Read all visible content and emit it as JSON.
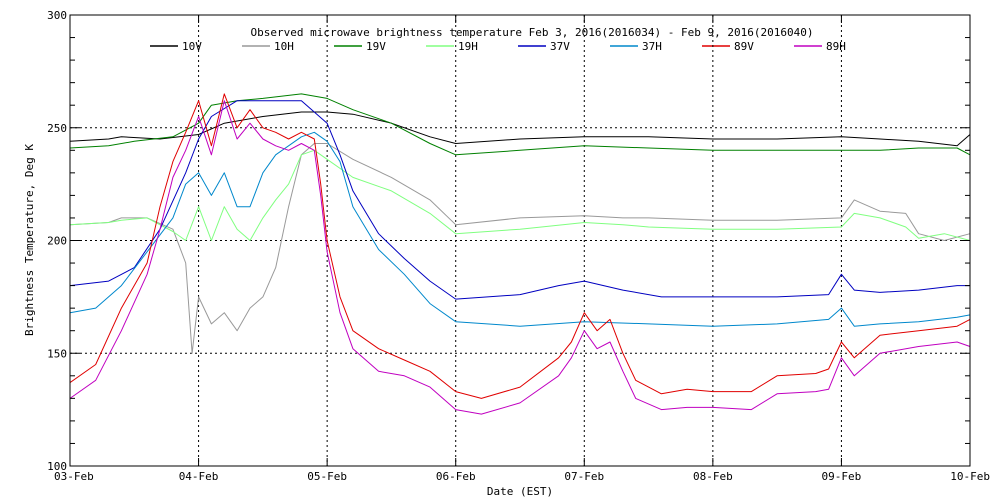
{
  "chart_data": {
    "type": "line",
    "title": "Observed microwave brightness temperature Feb  3, 2016(2016034) - Feb  9, 2016(2016040)",
    "xlabel": "Date (EST)",
    "ylabel": "Brightness Temperature, Deg K",
    "xlim": [
      0,
      7
    ],
    "ylim": [
      100,
      300
    ],
    "x_ticks": [
      {
        "x": 0,
        "label": "03-Feb"
      },
      {
        "x": 1,
        "label": "04-Feb"
      },
      {
        "x": 2,
        "label": "05-Feb"
      },
      {
        "x": 3,
        "label": "06-Feb"
      },
      {
        "x": 4,
        "label": "07-Feb"
      },
      {
        "x": 5,
        "label": "08-Feb"
      },
      {
        "x": 6,
        "label": "09-Feb"
      },
      {
        "x": 7,
        "label": "10-Feb"
      }
    ],
    "y_ticks": [
      {
        "y": 100,
        "label": "100"
      },
      {
        "y": 150,
        "label": "150"
      },
      {
        "y": 200,
        "label": "200"
      },
      {
        "y": 250,
        "label": "250"
      },
      {
        "y": 300,
        "label": "300"
      }
    ],
    "grid": true,
    "legend": "top",
    "series": [
      {
        "name": "10V",
        "color": "#000000",
        "x": [
          0,
          0.3,
          0.4,
          0.7,
          1.0,
          1.2,
          1.5,
          1.8,
          2.0,
          2.2,
          2.5,
          2.8,
          3.0,
          3.5,
          4.0,
          4.5,
          5.0,
          5.5,
          6.0,
          6.3,
          6.6,
          6.9,
          7.0
        ],
        "y": [
          244,
          245,
          246,
          245,
          247,
          252,
          255,
          257,
          257,
          256,
          252,
          246,
          243,
          245,
          246,
          246,
          245,
          245,
          246,
          245,
          244,
          242,
          247
        ]
      },
      {
        "name": "10H",
        "color": "#999999",
        "x": [
          0,
          0.3,
          0.4,
          0.6,
          0.8,
          0.9,
          0.95,
          1.0,
          1.1,
          1.2,
          1.3,
          1.4,
          1.5,
          1.6,
          1.7,
          1.8,
          1.9,
          2.0,
          2.2,
          2.5,
          2.8,
          3.0,
          3.5,
          4.0,
          4.3,
          4.5,
          5.0,
          5.5,
          6.0,
          6.1,
          6.3,
          6.5,
          6.6,
          6.8,
          7.0
        ],
        "y": [
          207,
          208,
          210,
          210,
          205,
          190,
          150,
          175,
          163,
          168,
          160,
          170,
          175,
          188,
          215,
          238,
          243,
          243,
          236,
          228,
          218,
          207,
          210,
          211,
          210,
          210,
          209,
          209,
          210,
          218,
          213,
          212,
          203,
          200,
          203
        ]
      },
      {
        "name": "19V",
        "color": "#008000",
        "x": [
          0,
          0.3,
          0.5,
          0.8,
          1.0,
          1.1,
          1.3,
          1.5,
          1.8,
          2.0,
          2.2,
          2.5,
          2.8,
          3.0,
          3.5,
          4.0,
          4.5,
          5.0,
          5.5,
          6.0,
          6.3,
          6.6,
          6.9,
          7.0
        ],
        "y": [
          241,
          242,
          244,
          246,
          252,
          260,
          262,
          263,
          265,
          263,
          258,
          252,
          243,
          238,
          240,
          242,
          241,
          240,
          240,
          240,
          240,
          241,
          241,
          238
        ]
      },
      {
        "name": "19H",
        "color": "#80ff80",
        "x": [
          0,
          0.3,
          0.4,
          0.6,
          0.8,
          0.9,
          1.0,
          1.1,
          1.2,
          1.3,
          1.4,
          1.5,
          1.6,
          1.7,
          1.8,
          1.9,
          2.0,
          2.2,
          2.5,
          2.8,
          3.0,
          3.5,
          4.0,
          4.3,
          4.5,
          5.0,
          5.5,
          6.0,
          6.1,
          6.3,
          6.5,
          6.6,
          6.8,
          7.0
        ],
        "y": [
          207,
          208,
          209,
          210,
          204,
          200,
          215,
          200,
          215,
          205,
          200,
          210,
          218,
          225,
          238,
          240,
          236,
          228,
          222,
          212,
          203,
          205,
          208,
          207,
          206,
          205,
          205,
          206,
          212,
          210,
          206,
          201,
          203,
          200
        ]
      },
      {
        "name": "37V",
        "color": "#0000c0",
        "x": [
          0,
          0.3,
          0.5,
          0.7,
          0.9,
          1.0,
          1.1,
          1.3,
          1.5,
          1.8,
          2.0,
          2.1,
          2.2,
          2.4,
          2.6,
          2.8,
          3.0,
          3.5,
          3.8,
          4.0,
          4.3,
          4.6,
          5.0,
          5.5,
          5.9,
          6.0,
          6.1,
          6.3,
          6.6,
          6.9,
          7.0
        ],
        "y": [
          180,
          182,
          188,
          205,
          230,
          245,
          255,
          262,
          262,
          262,
          252,
          238,
          222,
          203,
          192,
          182,
          174,
          176,
          180,
          182,
          178,
          175,
          175,
          175,
          176,
          185,
          178,
          177,
          178,
          180,
          180
        ]
      },
      {
        "name": "37H",
        "color": "#0088cc",
        "x": [
          0,
          0.2,
          0.4,
          0.6,
          0.8,
          0.9,
          1.0,
          1.1,
          1.2,
          1.3,
          1.4,
          1.5,
          1.6,
          1.7,
          1.8,
          1.9,
          2.0,
          2.1,
          2.2,
          2.4,
          2.6,
          2.8,
          3.0,
          3.5,
          4.0,
          4.5,
          5.0,
          5.5,
          5.9,
          6.0,
          6.1,
          6.3,
          6.6,
          6.9,
          7.0
        ],
        "y": [
          168,
          170,
          180,
          195,
          210,
          225,
          230,
          220,
          230,
          215,
          215,
          230,
          238,
          242,
          246,
          248,
          244,
          235,
          215,
          196,
          185,
          172,
          164,
          162,
          164,
          163,
          162,
          163,
          165,
          170,
          162,
          163,
          164,
          166,
          167
        ]
      },
      {
        "name": "89V",
        "color": "#e00000",
        "x": [
          0,
          0.2,
          0.4,
          0.6,
          0.7,
          0.8,
          0.9,
          1.0,
          1.1,
          1.2,
          1.3,
          1.4,
          1.5,
          1.6,
          1.7,
          1.8,
          1.9,
          1.95,
          2.0,
          2.1,
          2.2,
          2.4,
          2.6,
          2.8,
          3.0,
          3.2,
          3.5,
          3.8,
          3.9,
          4.0,
          4.1,
          4.2,
          4.3,
          4.4,
          4.6,
          4.8,
          5.0,
          5.3,
          5.5,
          5.8,
          5.9,
          6.0,
          6.1,
          6.3,
          6.6,
          6.9,
          7.0
        ],
        "y": [
          137,
          145,
          170,
          190,
          215,
          235,
          248,
          262,
          242,
          265,
          250,
          258,
          250,
          248,
          245,
          248,
          245,
          225,
          200,
          175,
          160,
          152,
          147,
          142,
          133,
          130,
          135,
          148,
          155,
          168,
          160,
          165,
          150,
          138,
          132,
          134,
          133,
          133,
          140,
          141,
          143,
          155,
          148,
          158,
          160,
          162,
          165
        ]
      },
      {
        "name": "89H",
        "color": "#c000c0",
        "x": [
          0,
          0.2,
          0.4,
          0.6,
          0.7,
          0.8,
          0.9,
          1.0,
          1.1,
          1.2,
          1.3,
          1.4,
          1.5,
          1.6,
          1.7,
          1.8,
          1.9,
          1.95,
          2.0,
          2.1,
          2.2,
          2.4,
          2.6,
          2.8,
          3.0,
          3.2,
          3.5,
          3.8,
          3.9,
          4.0,
          4.1,
          4.2,
          4.3,
          4.4,
          4.6,
          4.8,
          5.0,
          5.3,
          5.5,
          5.8,
          5.9,
          6.0,
          6.1,
          6.3,
          6.6,
          6.9,
          7.0
        ],
        "y": [
          130,
          138,
          160,
          185,
          205,
          228,
          240,
          255,
          238,
          262,
          245,
          252,
          245,
          242,
          240,
          243,
          240,
          220,
          195,
          168,
          152,
          142,
          140,
          135,
          125,
          123,
          128,
          140,
          148,
          160,
          152,
          155,
          142,
          130,
          125,
          126,
          126,
          125,
          132,
          133,
          134,
          148,
          140,
          150,
          153,
          155,
          153
        ]
      }
    ]
  }
}
